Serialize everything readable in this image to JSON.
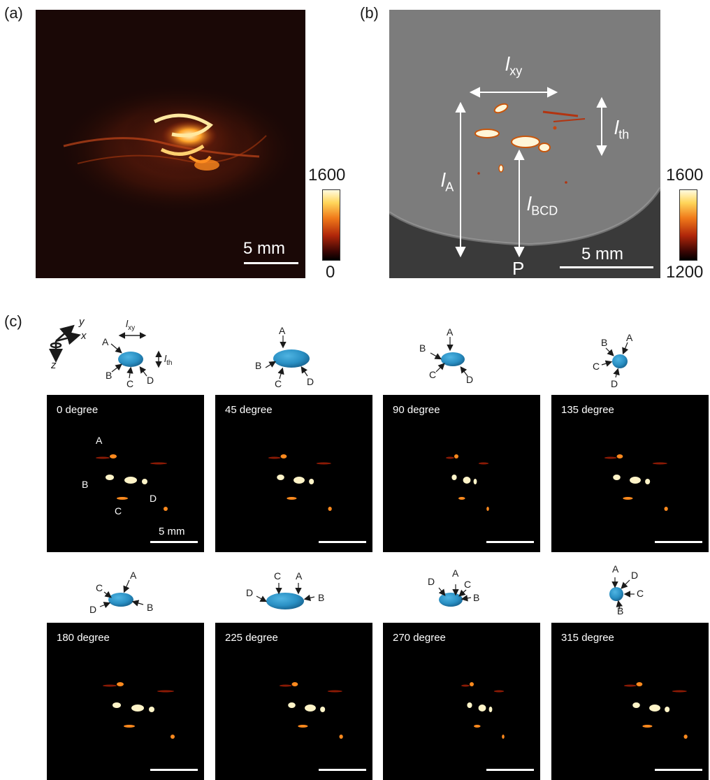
{
  "panel_labels": {
    "a": "(a)",
    "b": "(b)",
    "c": "(c)"
  },
  "panel_a": {
    "scalebar": "5 mm",
    "colorbar": {
      "max": "1600",
      "min": "0"
    }
  },
  "panel_b": {
    "labels": {
      "lxy": "l",
      "lxy_sub": "xy",
      "lth": "l",
      "lth_sub": "th",
      "lA": "l",
      "lA_sub": "A",
      "lBCD": "l",
      "lBCD_sub": "BCD",
      "P": "P"
    },
    "scalebar": "5 mm",
    "colorbar": {
      "max": "1600",
      "min": "1200"
    }
  },
  "panel_c": {
    "axes": {
      "x": "x",
      "y": "y",
      "z": "z"
    },
    "dims": {
      "lxy": "l",
      "lxy_sub": "xy",
      "lth": "l",
      "lth_sub": "th"
    },
    "points": [
      "A",
      "B",
      "C",
      "D"
    ],
    "views": [
      {
        "label": "0 degree"
      },
      {
        "label": "45 degree"
      },
      {
        "label": "90 degree"
      },
      {
        "label": "135 degree"
      },
      {
        "label": "180 degree"
      },
      {
        "label": "225 degree"
      },
      {
        "label": "270 degree"
      },
      {
        "label": "315 degree"
      }
    ],
    "scalebar": "5 mm"
  },
  "colors": {
    "ellipsoid": "#2a90c4",
    "heat_high": "#fff4c8",
    "heat_mid": "#ff8a1e",
    "heat_low": "#8a1a05"
  }
}
